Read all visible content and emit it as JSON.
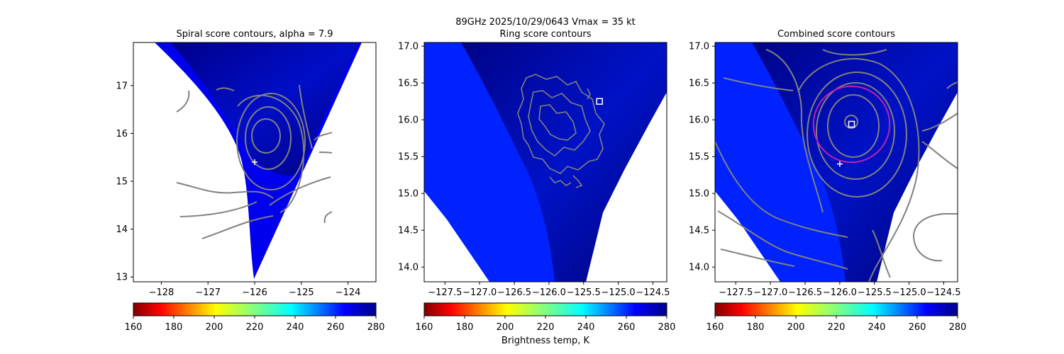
{
  "suptitle": "89GHz  2025/10/29/0643    Vmax = 35 kt",
  "colorbar_label": "Brightness temp, K",
  "colormap": "jet_r",
  "colors": {
    "contour": "#808080",
    "marker": "#ffffff",
    "ring": "#c020b0",
    "plot_edge": "#000000",
    "background": "#ffffff"
  },
  "chart_data": [
    {
      "type": "heatmap",
      "title": "Spiral score contours, alpha =  7.9",
      "xlim": [
        -128.6,
        -123.4
      ],
      "ylim": [
        12.9,
        17.9
      ],
      "xticks": [
        -128,
        -127,
        -126,
        -125,
        -124
      ],
      "xtick_labels": [
        "−128",
        "−127",
        "−126",
        "−125",
        "−124"
      ],
      "yticks": [
        13,
        14,
        15,
        16,
        17
      ],
      "ytick_labels": [
        "13",
        "14",
        "15",
        "16",
        "17"
      ],
      "swath": "wedge",
      "markers": [
        {
          "symbol": "plus",
          "x": -126.0,
          "y": 15.4
        }
      ],
      "contour_center": {
        "x": -125.85,
        "y": 15.8
      },
      "colorbar": {
        "vmin": 160,
        "vmax": 280,
        "ticks": [
          "160",
          "180",
          "200",
          "220",
          "240",
          "260",
          "280"
        ]
      }
    },
    {
      "type": "heatmap",
      "title": "Ring score contours",
      "xlim": [
        -127.8,
        -124.3
      ],
      "ylim": [
        13.8,
        17.05
      ],
      "xticks": [
        -127.5,
        -127.0,
        -126.5,
        -126.0,
        -125.5,
        -125.0,
        -124.5
      ],
      "xtick_labels": [
        "−127.5",
        "−127.0",
        "−126.5",
        "−126.0",
        "−125.5",
        "−125.0",
        "−124.5"
      ],
      "yticks": [
        14.0,
        14.5,
        15.0,
        15.5,
        16.0,
        16.5,
        17.0
      ],
      "ytick_labels": [
        "14.0",
        "14.5",
        "15.0",
        "15.5",
        "16.0",
        "16.5",
        "17.0"
      ],
      "swath": "full",
      "markers": [
        {
          "symbol": "square",
          "x": -125.27,
          "y": 16.25
        }
      ],
      "colorbar": {
        "vmin": 160,
        "vmax": 280,
        "ticks": [
          "160",
          "180",
          "200",
          "220",
          "240",
          "260",
          "280"
        ]
      }
    },
    {
      "type": "heatmap",
      "title": "Combined score contours",
      "xlim": [
        -127.8,
        -124.3
      ],
      "ylim": [
        13.8,
        17.05
      ],
      "xticks": [
        -127.5,
        -127.0,
        -126.5,
        -126.0,
        -125.5,
        -125.0,
        -124.5
      ],
      "xtick_labels": [
        "−127.5",
        "−127.0",
        "−126.5",
        "−126.0",
        "−125.5",
        "−125.0",
        "−124.5"
      ],
      "yticks": [
        14.0,
        14.5,
        15.0,
        15.5,
        16.0,
        16.5,
        17.0
      ],
      "ytick_labels": [
        "14.0",
        "14.5",
        "15.0",
        "15.5",
        "16.0",
        "16.5",
        "17.0"
      ],
      "swath": "full",
      "markers": [
        {
          "symbol": "plus",
          "x": -126.0,
          "y": 15.4
        },
        {
          "symbol": "square",
          "x": -125.83,
          "y": 15.94
        }
      ],
      "ring": {
        "x": -125.83,
        "y": 15.94,
        "r": 0.55
      },
      "contour_center": {
        "x": -125.83,
        "y": 15.94
      },
      "colorbar": {
        "vmin": 160,
        "vmax": 280,
        "ticks": [
          "160",
          "180",
          "200",
          "220",
          "240",
          "260",
          "280"
        ]
      }
    }
  ]
}
